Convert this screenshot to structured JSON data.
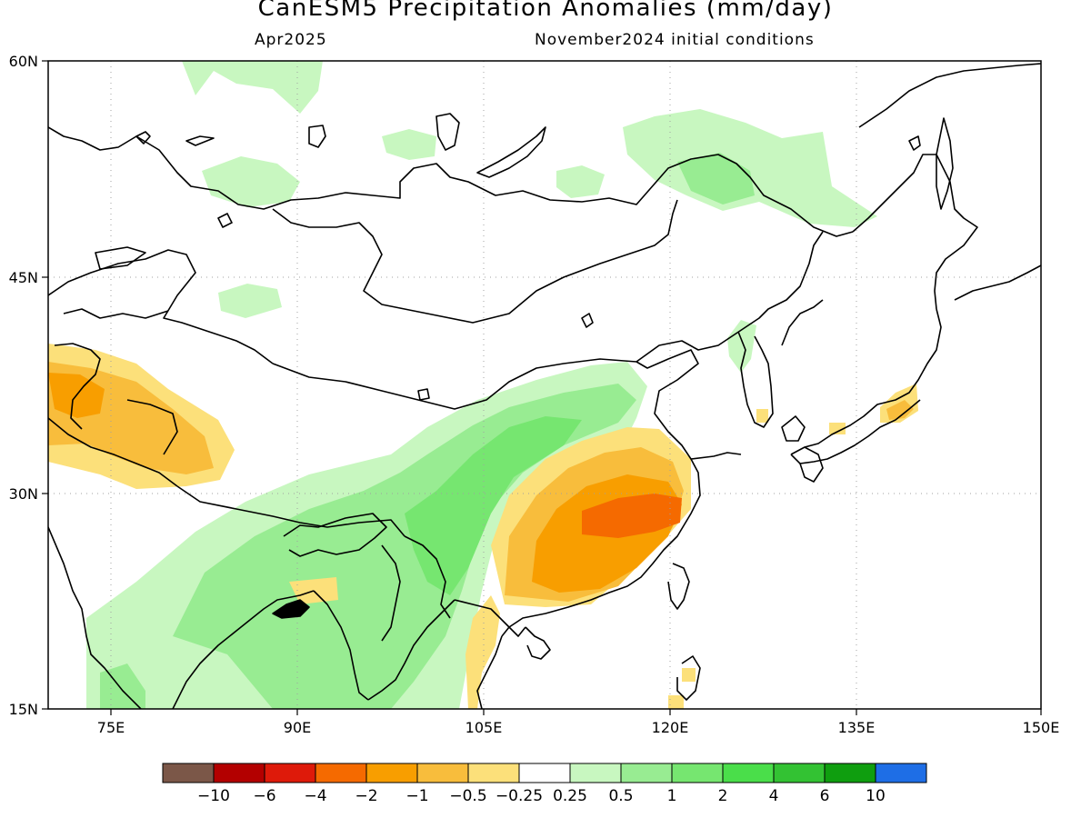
{
  "title": "CanESM5 Precipitation Anomalies (mm/day)",
  "subtitle_left": "Apr2025",
  "subtitle_right": "November2024 initial conditions",
  "chart_data": {
    "type": "heatmap",
    "lon_range": [
      70,
      150
    ],
    "lat_range": [
      15,
      60
    ],
    "x_ticks": [
      "75E",
      "90E",
      "105E",
      "120E",
      "135E",
      "150E"
    ],
    "y_ticks": [
      "60N",
      "45N",
      "30N",
      "15N"
    ],
    "grid": "dotted",
    "colorbar": {
      "placement": "bottom",
      "labels": [
        "-10",
        "-6",
        "-4",
        "-2",
        "-1",
        "-0.5",
        "-0.25",
        "0.25",
        "0.5",
        "1",
        "2",
        "4",
        "6",
        "10"
      ],
      "colors": [
        "#7b5748",
        "#b30000",
        "#de1a0a",
        "#f56a00",
        "#f89e00",
        "#f8bd3c",
        "#fce07a",
        "#ffffff",
        "#c8f7c0",
        "#98ec92",
        "#76e670",
        "#4ade4a",
        "#33c233",
        "#0f9e0f",
        "#1e6ee6"
      ]
    },
    "features": [
      {
        "region": "Northern Pakistan / Kashmir / Western Himalaya",
        "anomaly": "negative",
        "range_mm_day": [
          -2,
          -0.5
        ]
      },
      {
        "region": "Southeast China",
        "anomaly": "negative",
        "range_mm_day": [
          -4,
          -0.5
        ]
      },
      {
        "region": "Southern Japan",
        "anomaly": "negative",
        "range_mm_day": [
          -1,
          -0.5
        ]
      },
      {
        "region": "Central China / Sichuan",
        "anomaly": "positive",
        "range_mm_day": [
          0.25,
          2
        ]
      },
      {
        "region": "Eastern India / Bangladesh / Myanmar",
        "anomaly": "positive",
        "range_mm_day": [
          0.25,
          2
        ]
      },
      {
        "region": "Southern India",
        "anomaly": "positive",
        "range_mm_day": [
          0.25,
          2
        ]
      },
      {
        "region": "Northeast China / Siberia / Mongolia",
        "anomaly": "positive",
        "range_mm_day": [
          0.25,
          1
        ]
      }
    ]
  }
}
